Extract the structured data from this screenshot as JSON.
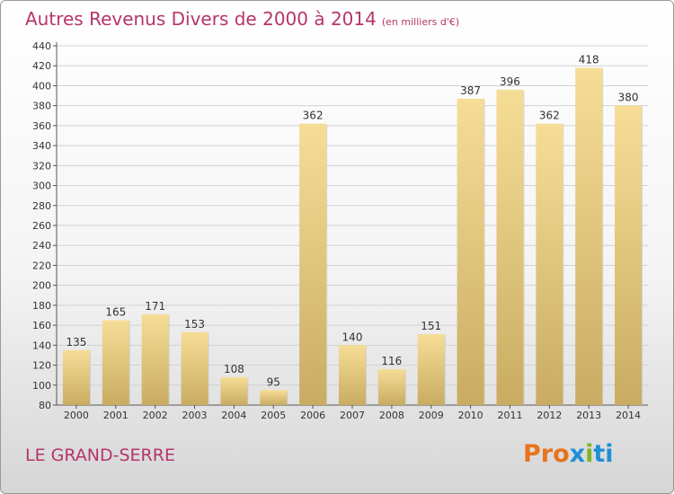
{
  "header": {
    "title": "Autres Revenus Divers de 2000 à 2014",
    "subtitle": "(en milliers d'€)"
  },
  "footer": {
    "location": "LE GRAND-SERRE",
    "logo_text": "Proxiti",
    "logo_colors": [
      "#e8731c",
      "#e8731c",
      "#e8731c",
      "#1f8fd6",
      "#7ab52b",
      "#1f8fd6",
      "#1f8fd6"
    ]
  },
  "chart_data": {
    "type": "bar",
    "categories": [
      "2000",
      "2001",
      "2002",
      "2003",
      "2004",
      "2005",
      "2006",
      "2007",
      "2008",
      "2009",
      "2010",
      "2011",
      "2012",
      "2013",
      "2014"
    ],
    "values": [
      135,
      165,
      171,
      153,
      108,
      95,
      362,
      140,
      116,
      151,
      387,
      396,
      362,
      418,
      380
    ],
    "ylim": [
      80,
      440
    ],
    "yticks": [
      80,
      100,
      120,
      140,
      160,
      180,
      200,
      220,
      240,
      260,
      280,
      300,
      320,
      340,
      360,
      380,
      400,
      420,
      440
    ],
    "grid": true,
    "bar_color": "#e8cf8a"
  }
}
